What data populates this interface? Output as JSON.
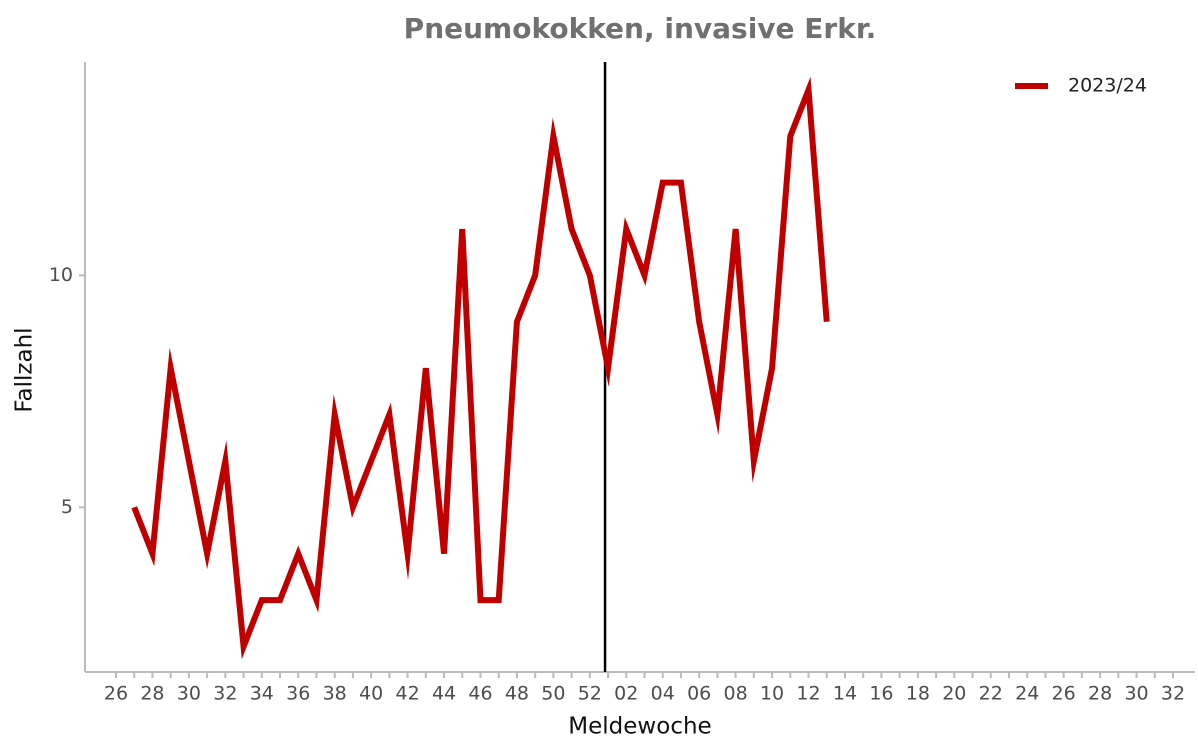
{
  "chart_data": {
    "type": "line",
    "title": "Pneumokokken, invasive Erkr.",
    "x_label": "Meldewoche",
    "y_label": "Fallzahl",
    "categories": [
      "26",
      null,
      "28",
      null,
      "30",
      null,
      "32",
      null,
      "34",
      null,
      "36",
      null,
      "38",
      null,
      "40",
      null,
      "42",
      null,
      "44",
      null,
      "46",
      null,
      "48",
      null,
      "50",
      null,
      "52",
      null,
      "02",
      null,
      "04",
      null,
      "06",
      null,
      "08",
      null,
      "10",
      null,
      "12",
      null,
      "14",
      null,
      "16",
      null,
      "18",
      null,
      "20",
      null,
      "22",
      null,
      "24",
      null,
      "26",
      null,
      "28",
      null,
      "30",
      null,
      "32"
    ],
    "series": [
      {
        "name": "2023/24",
        "color": "#c00000",
        "values": [
          null,
          5,
          4,
          8,
          6,
          4,
          6,
          2,
          3,
          3,
          4,
          3,
          7,
          5,
          6,
          7,
          4,
          8,
          4,
          11,
          3,
          3,
          9,
          10,
          13,
          11,
          10,
          8,
          11,
          10,
          12,
          12,
          9,
          7,
          11,
          6,
          8,
          13,
          14,
          9,
          null,
          null,
          null,
          null,
          null,
          null,
          null,
          null,
          null,
          null,
          null,
          null,
          null,
          null,
          null,
          null,
          null,
          null,
          null
        ]
      }
    ],
    "ylim": [
      1.45,
      14.6
    ],
    "yticks": [
      5,
      10
    ],
    "legend": "top-right"
  }
}
